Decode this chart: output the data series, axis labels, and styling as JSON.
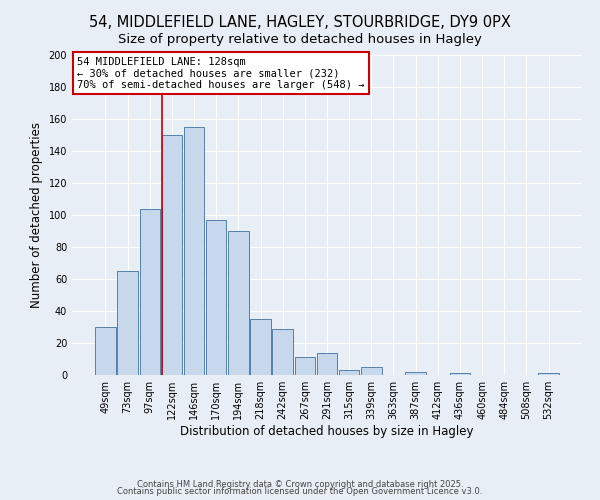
{
  "title": "54, MIDDLEFIELD LANE, HAGLEY, STOURBRIDGE, DY9 0PX",
  "subtitle": "Size of property relative to detached houses in Hagley",
  "xlabel": "Distribution of detached houses by size in Hagley",
  "ylabel": "Number of detached properties",
  "bar_color": "#c8d8ec",
  "bar_edge_color": "#5580a8",
  "background_color": "#e8eef5",
  "grid_color": "#ffffff",
  "categories": [
    "49sqm",
    "73sqm",
    "97sqm",
    "122sqm",
    "146sqm",
    "170sqm",
    "194sqm",
    "218sqm",
    "242sqm",
    "267sqm",
    "291sqm",
    "315sqm",
    "339sqm",
    "363sqm",
    "387sqm",
    "412sqm",
    "436sqm",
    "460sqm",
    "484sqm",
    "508sqm",
    "532sqm"
  ],
  "values": [
    30,
    65,
    104,
    150,
    155,
    97,
    90,
    35,
    29,
    11,
    14,
    3,
    5,
    0,
    2,
    0,
    1,
    0,
    0,
    0,
    1
  ],
  "ylim": [
    0,
    200
  ],
  "yticks": [
    0,
    20,
    40,
    60,
    80,
    100,
    120,
    140,
    160,
    180,
    200
  ],
  "vline_color": "#cc0000",
  "vline_index": 3,
  "annotation_box_text": "54 MIDDLEFIELD LANE: 128sqm\n← 30% of detached houses are smaller (232)\n70% of semi-detached houses are larger (548) →",
  "footer_line1": "Contains HM Land Registry data © Crown copyright and database right 2025.",
  "footer_line2": "Contains public sector information licensed under the Open Government Licence v3.0.",
  "title_fontsize": 10.5,
  "subtitle_fontsize": 9.5,
  "tick_fontsize": 7,
  "xlabel_fontsize": 8.5,
  "ylabel_fontsize": 8.5,
  "annotation_fontsize": 7.5,
  "footer_fontsize": 6.0
}
